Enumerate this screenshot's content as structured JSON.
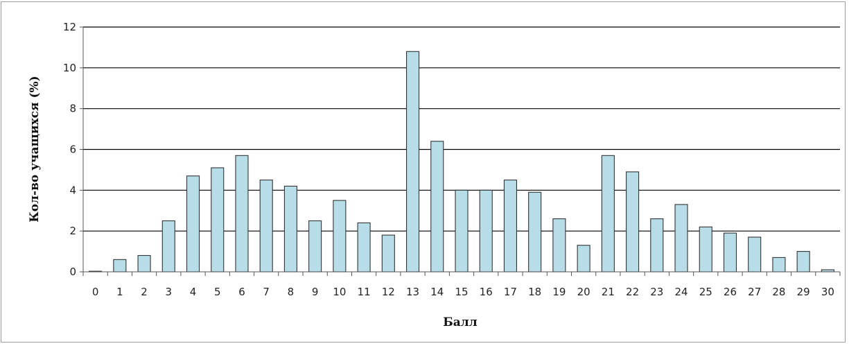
{
  "chart_data": {
    "type": "bar",
    "categories": [
      "0",
      "1",
      "2",
      "3",
      "4",
      "5",
      "6",
      "7",
      "8",
      "9",
      "10",
      "11",
      "12",
      "13",
      "14",
      "15",
      "16",
      "17",
      "18",
      "19",
      "20",
      "21",
      "22",
      "23",
      "24",
      "25",
      "26",
      "27",
      "28",
      "29",
      "30"
    ],
    "values": [
      0.03,
      0.6,
      0.8,
      2.5,
      4.7,
      5.1,
      5.7,
      4.5,
      4.2,
      2.5,
      3.5,
      2.4,
      1.8,
      10.8,
      6.4,
      4.0,
      4.0,
      4.5,
      3.9,
      2.6,
      1.3,
      5.7,
      4.9,
      2.6,
      3.3,
      2.2,
      1.9,
      1.7,
      0.7,
      1.0,
      0.1
    ],
    "title": "",
    "xlabel": "Балл",
    "ylabel": "Кол-во учащихся (%)",
    "ylim": [
      0,
      12
    ],
    "yticks": [
      "0",
      "2",
      "4",
      "6",
      "8",
      "10",
      "12"
    ],
    "grid": true,
    "colors": {
      "bar_fill": "#b7dde8",
      "bar_stroke": "#333333",
      "grid": "#000000"
    }
  }
}
